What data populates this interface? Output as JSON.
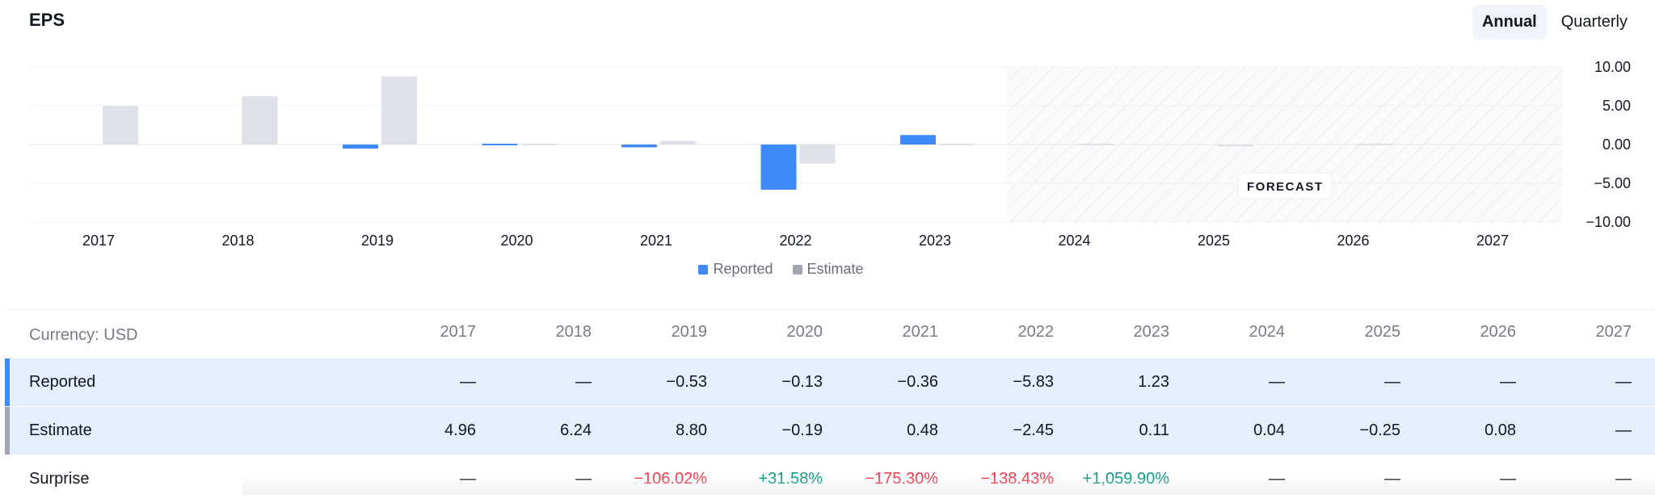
{
  "header": {
    "title": "EPS",
    "toggle": [
      "Annual",
      "Quarterly"
    ],
    "active": "Annual"
  },
  "colors": {
    "reported": "#4089f8",
    "estimate": "#dfe1e8",
    "estimate_legend": "#a3a6af",
    "positive": "#089981",
    "negative": "#f23645"
  },
  "chart_data": {
    "type": "bar",
    "categories": [
      "2017",
      "2018",
      "2019",
      "2020",
      "2021",
      "2022",
      "2023",
      "2024",
      "2025",
      "2026",
      "2027"
    ],
    "series": [
      {
        "name": "Reported",
        "values": [
          null,
          null,
          -0.53,
          -0.13,
          -0.36,
          -5.83,
          1.23,
          null,
          null,
          null,
          null
        ]
      },
      {
        "name": "Estimate",
        "values": [
          4.96,
          6.24,
          8.8,
          -0.19,
          0.48,
          -2.45,
          0.11,
          0.04,
          -0.25,
          0.08,
          null
        ]
      }
    ],
    "yticks": [
      "10.00",
      "5.00",
      "0.00",
      "−5.00",
      "−10.00"
    ],
    "ylim": [
      -10,
      10
    ],
    "forecast_label": "FORECAST",
    "forecast_start": "2024",
    "legend": [
      "Reported",
      "Estimate"
    ]
  },
  "table": {
    "currency_label": "Currency: USD",
    "years": [
      "2017",
      "2018",
      "2019",
      "2020",
      "2021",
      "2022",
      "2023",
      "2024",
      "2025",
      "2026",
      "2027"
    ],
    "rows": [
      {
        "label": "Reported",
        "values": [
          "—",
          "—",
          "−0.53",
          "−0.13",
          "−0.36",
          "−5.83",
          "1.23",
          "—",
          "—",
          "—",
          "—"
        ]
      },
      {
        "label": "Estimate",
        "values": [
          "4.96",
          "6.24",
          "8.80",
          "−0.19",
          "0.48",
          "−2.45",
          "0.11",
          "0.04",
          "−0.25",
          "0.08",
          "—"
        ]
      },
      {
        "label": "Surprise",
        "values": [
          "—",
          "—",
          "−106.02%",
          "+31.58%",
          "−175.30%",
          "−138.43%",
          "+1,059.90%",
          "—",
          "—",
          "—",
          "—"
        ]
      }
    ]
  }
}
